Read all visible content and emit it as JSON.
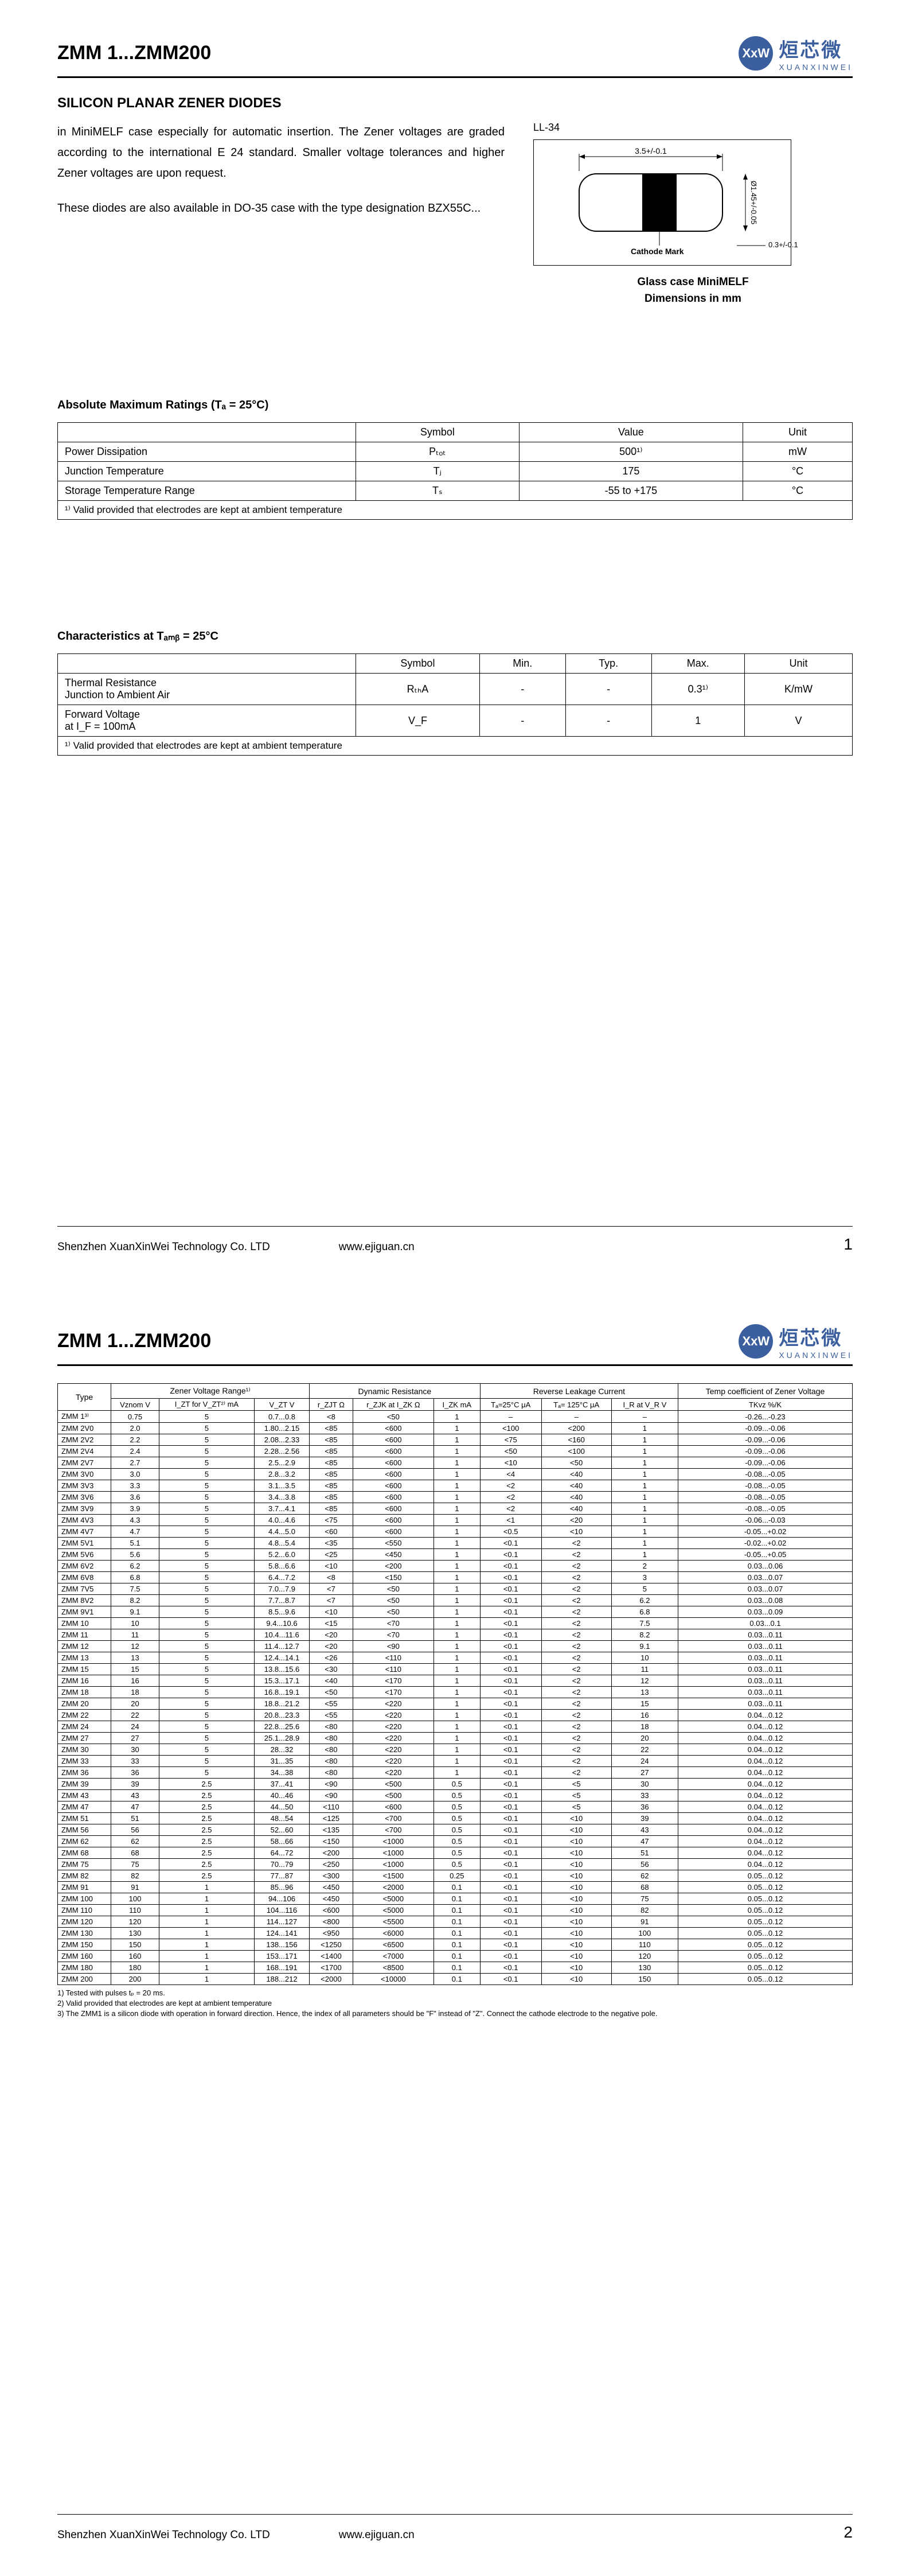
{
  "doc": {
    "title": "ZMM 1...ZMM200",
    "subtitle": "SILICON PLANAR ZENER DIODES",
    "intro_p1": "in MiniMELF case especially for automatic insertion. The Zener voltages are graded according to the international E 24 standard. Smaller voltage tolerances and higher Zener voltages are upon request.",
    "intro_p2": "These diodes are also available in DO-35 case with the type designation BZX55C...",
    "diagram_label": "LL-34",
    "diagram_dim_len": "3.5+/-0.1",
    "diagram_dim_dia": "Ø1.45+/-0.05",
    "diagram_dim_edge": "0.3+/-0.1",
    "diagram_cathode": "Cathode Mark",
    "diagram_caption1": "Glass case MiniMELF",
    "diagram_caption2": "Dimensions in mm",
    "logo_cn": "烜芯微",
    "logo_en": "XUANXINWEI",
    "logo_sym": "XxW"
  },
  "absmax": {
    "heading": "Absolute Maximum Ratings (Tₐ = 25°C)",
    "cols": [
      "Symbol",
      "Value",
      "Unit"
    ],
    "rows": [
      {
        "label": "Power Dissipation",
        "symbol": "Pₜₒₜ",
        "value": "500¹⁾",
        "unit": "mW"
      },
      {
        "label": "Junction Temperature",
        "symbol": "Tⱼ",
        "value": "175",
        "unit": "°C"
      },
      {
        "label": "Storage Temperature Range",
        "symbol": "Tₛ",
        "value": "-55 to +175",
        "unit": "°C"
      }
    ],
    "note": "¹⁾ Valid provided that electrodes are kept at ambient temperature"
  },
  "char": {
    "heading": "Characteristics at Tₐₘᵦ = 25°C",
    "cols": [
      "Symbol",
      "Min.",
      "Typ.",
      "Max.",
      "Unit"
    ],
    "rows": [
      {
        "label": "Thermal Resistance\nJunction to Ambient Air",
        "symbol": "RₜₕA",
        "min": "-",
        "typ": "-",
        "max": "0.3¹⁾",
        "unit": "K/mW"
      },
      {
        "label": "Forward Voltage\nat I_F = 100mA",
        "symbol": "V_F",
        "min": "-",
        "typ": "-",
        "max": "1",
        "unit": "V"
      }
    ],
    "note": "¹⁾ Valid provided that electrodes are kept at ambient temperature"
  },
  "footer": {
    "company": "Shenzhen XuanXinWei Technology Co. LTD",
    "url": "www.ejiguan.cn",
    "p1": "1",
    "p2": "2"
  },
  "big": {
    "type_label": "Type",
    "group_headers": [
      "Zener Voltage Range¹⁾",
      "Dynamic Resistance",
      "Reverse Leakage Current",
      "Temp coefficient of Zener Voltage"
    ],
    "sub_headers": [
      "Vznom V",
      "I_ZT for V_ZT²⁾ mA",
      "V_ZT V",
      "r_ZJT Ω",
      "r_ZJK at I_ZK Ω",
      "I_ZK mA",
      "Tₐ=25°C μA",
      "Tₐ= 125°C μA",
      "I_R at V_R V",
      "TKvz %/K"
    ],
    "rows": [
      [
        "ZMM 1³⁾",
        "0.75",
        "5",
        "0.7...0.8",
        "<8",
        "<50",
        "1",
        "–",
        "–",
        "–",
        "-0.26...-0.23"
      ],
      [
        "ZMM 2V0",
        "2.0",
        "5",
        "1.80...2.15",
        "<85",
        "<600",
        "1",
        "<100",
        "<200",
        "1",
        "-0.09...-0.06"
      ],
      [
        "ZMM 2V2",
        "2.2",
        "5",
        "2.08...2.33",
        "<85",
        "<600",
        "1",
        "<75",
        "<160",
        "1",
        "-0.09...-0.06"
      ],
      [
        "ZMM 2V4",
        "2.4",
        "5",
        "2.28...2.56",
        "<85",
        "<600",
        "1",
        "<50",
        "<100",
        "1",
        "-0.09...-0.06"
      ],
      [
        "ZMM 2V7",
        "2.7",
        "5",
        "2.5...2.9",
        "<85",
        "<600",
        "1",
        "<10",
        "<50",
        "1",
        "-0.09...-0.06"
      ],
      [
        "ZMM 3V0",
        "3.0",
        "5",
        "2.8...3.2",
        "<85",
        "<600",
        "1",
        "<4",
        "<40",
        "1",
        "-0.08...-0.05"
      ],
      [
        "ZMM 3V3",
        "3.3",
        "5",
        "3.1...3.5",
        "<85",
        "<600",
        "1",
        "<2",
        "<40",
        "1",
        "-0.08...-0.05"
      ],
      [
        "ZMM 3V6",
        "3.6",
        "5",
        "3.4...3.8",
        "<85",
        "<600",
        "1",
        "<2",
        "<40",
        "1",
        "-0.08...-0.05"
      ],
      [
        "ZMM 3V9",
        "3.9",
        "5",
        "3.7...4.1",
        "<85",
        "<600",
        "1",
        "<2",
        "<40",
        "1",
        "-0.08...-0.05"
      ],
      [
        "ZMM 4V3",
        "4.3",
        "5",
        "4.0...4.6",
        "<75",
        "<600",
        "1",
        "<1",
        "<20",
        "1",
        "-0.06...-0.03"
      ],
      [
        "ZMM 4V7",
        "4.7",
        "5",
        "4.4...5.0",
        "<60",
        "<600",
        "1",
        "<0.5",
        "<10",
        "1",
        "-0.05...+0.02"
      ],
      [
        "ZMM 5V1",
        "5.1",
        "5",
        "4.8...5.4",
        "<35",
        "<550",
        "1",
        "<0.1",
        "<2",
        "1",
        "-0.02...+0.02"
      ],
      [
        "ZMM 5V6",
        "5.6",
        "5",
        "5.2...6.0",
        "<25",
        "<450",
        "1",
        "<0.1",
        "<2",
        "1",
        "-0.05...+0.05"
      ],
      [
        "ZMM 6V2",
        "6.2",
        "5",
        "5.8...6.6",
        "<10",
        "<200",
        "1",
        "<0.1",
        "<2",
        "2",
        "0.03...0.06"
      ],
      [
        "ZMM 6V8",
        "6.8",
        "5",
        "6.4...7.2",
        "<8",
        "<150",
        "1",
        "<0.1",
        "<2",
        "3",
        "0.03...0.07"
      ],
      [
        "ZMM 7V5",
        "7.5",
        "5",
        "7.0...7.9",
        "<7",
        "<50",
        "1",
        "<0.1",
        "<2",
        "5",
        "0.03...0.07"
      ],
      [
        "ZMM 8V2",
        "8.2",
        "5",
        "7.7...8.7",
        "<7",
        "<50",
        "1",
        "<0.1",
        "<2",
        "6.2",
        "0.03...0.08"
      ],
      [
        "ZMM 9V1",
        "9.1",
        "5",
        "8.5...9.6",
        "<10",
        "<50",
        "1",
        "<0.1",
        "<2",
        "6.8",
        "0.03...0.09"
      ],
      [
        "ZMM 10",
        "10",
        "5",
        "9.4...10.6",
        "<15",
        "<70",
        "1",
        "<0.1",
        "<2",
        "7.5",
        "0.03...0.1"
      ],
      [
        "ZMM 11",
        "11",
        "5",
        "10.4...11.6",
        "<20",
        "<70",
        "1",
        "<0.1",
        "<2",
        "8.2",
        "0.03...0.11"
      ],
      [
        "ZMM 12",
        "12",
        "5",
        "11.4...12.7",
        "<20",
        "<90",
        "1",
        "<0.1",
        "<2",
        "9.1",
        "0.03...0.11"
      ],
      [
        "ZMM 13",
        "13",
        "5",
        "12.4...14.1",
        "<26",
        "<110",
        "1",
        "<0.1",
        "<2",
        "10",
        "0.03...0.11"
      ],
      [
        "ZMM 15",
        "15",
        "5",
        "13.8...15.6",
        "<30",
        "<110",
        "1",
        "<0.1",
        "<2",
        "11",
        "0.03...0.11"
      ],
      [
        "ZMM 16",
        "16",
        "5",
        "15.3...17.1",
        "<40",
        "<170",
        "1",
        "<0.1",
        "<2",
        "12",
        "0.03...0.11"
      ],
      [
        "ZMM 18",
        "18",
        "5",
        "16.8...19.1",
        "<50",
        "<170",
        "1",
        "<0.1",
        "<2",
        "13",
        "0.03...0.11"
      ],
      [
        "ZMM 20",
        "20",
        "5",
        "18.8...21.2",
        "<55",
        "<220",
        "1",
        "<0.1",
        "<2",
        "15",
        "0.03...0.11"
      ],
      [
        "ZMM 22",
        "22",
        "5",
        "20.8...23.3",
        "<55",
        "<220",
        "1",
        "<0.1",
        "<2",
        "16",
        "0.04...0.12"
      ],
      [
        "ZMM 24",
        "24",
        "5",
        "22.8...25.6",
        "<80",
        "<220",
        "1",
        "<0.1",
        "<2",
        "18",
        "0.04...0.12"
      ],
      [
        "ZMM 27",
        "27",
        "5",
        "25.1...28.9",
        "<80",
        "<220",
        "1",
        "<0.1",
        "<2",
        "20",
        "0.04...0.12"
      ],
      [
        "ZMM 30",
        "30",
        "5",
        "28...32",
        "<80",
        "<220",
        "1",
        "<0.1",
        "<2",
        "22",
        "0.04...0.12"
      ],
      [
        "ZMM 33",
        "33",
        "5",
        "31...35",
        "<80",
        "<220",
        "1",
        "<0.1",
        "<2",
        "24",
        "0.04...0.12"
      ],
      [
        "ZMM 36",
        "36",
        "5",
        "34...38",
        "<80",
        "<220",
        "1",
        "<0.1",
        "<2",
        "27",
        "0.04...0.12"
      ],
      [
        "ZMM 39",
        "39",
        "2.5",
        "37...41",
        "<90",
        "<500",
        "0.5",
        "<0.1",
        "<5",
        "30",
        "0.04...0.12"
      ],
      [
        "ZMM 43",
        "43",
        "2.5",
        "40...46",
        "<90",
        "<500",
        "0.5",
        "<0.1",
        "<5",
        "33",
        "0.04...0.12"
      ],
      [
        "ZMM 47",
        "47",
        "2.5",
        "44...50",
        "<110",
        "<600",
        "0.5",
        "<0.1",
        "<5",
        "36",
        "0.04...0.12"
      ],
      [
        "ZMM 51",
        "51",
        "2.5",
        "48...54",
        "<125",
        "<700",
        "0.5",
        "<0.1",
        "<10",
        "39",
        "0.04...0.12"
      ],
      [
        "ZMM 56",
        "56",
        "2.5",
        "52...60",
        "<135",
        "<700",
        "0.5",
        "<0.1",
        "<10",
        "43",
        "0.04...0.12"
      ],
      [
        "ZMM 62",
        "62",
        "2.5",
        "58...66",
        "<150",
        "<1000",
        "0.5",
        "<0.1",
        "<10",
        "47",
        "0.04...0.12"
      ],
      [
        "ZMM 68",
        "68",
        "2.5",
        "64...72",
        "<200",
        "<1000",
        "0.5",
        "<0.1",
        "<10",
        "51",
        "0.04...0.12"
      ],
      [
        "ZMM 75",
        "75",
        "2.5",
        "70...79",
        "<250",
        "<1000",
        "0.5",
        "<0.1",
        "<10",
        "56",
        "0.04...0.12"
      ],
      [
        "ZMM 82",
        "82",
        "2.5",
        "77...87",
        "<300",
        "<1500",
        "0.25",
        "<0.1",
        "<10",
        "62",
        "0.05...0.12"
      ],
      [
        "ZMM 91",
        "91",
        "1",
        "85...96",
        "<450",
        "<2000",
        "0.1",
        "<0.1",
        "<10",
        "68",
        "0.05...0.12"
      ],
      [
        "ZMM 100",
        "100",
        "1",
        "94...106",
        "<450",
        "<5000",
        "0.1",
        "<0.1",
        "<10",
        "75",
        "0.05...0.12"
      ],
      [
        "ZMM 110",
        "110",
        "1",
        "104...116",
        "<600",
        "<5000",
        "0.1",
        "<0.1",
        "<10",
        "82",
        "0.05...0.12"
      ],
      [
        "ZMM 120",
        "120",
        "1",
        "114...127",
        "<800",
        "<5500",
        "0.1",
        "<0.1",
        "<10",
        "91",
        "0.05...0.12"
      ],
      [
        "ZMM 130",
        "130",
        "1",
        "124...141",
        "<950",
        "<6000",
        "0.1",
        "<0.1",
        "<10",
        "100",
        "0.05...0.12"
      ],
      [
        "ZMM 150",
        "150",
        "1",
        "138...156",
        "<1250",
        "<6500",
        "0.1",
        "<0.1",
        "<10",
        "110",
        "0.05...0.12"
      ],
      [
        "ZMM 160",
        "160",
        "1",
        "153...171",
        "<1400",
        "<7000",
        "0.1",
        "<0.1",
        "<10",
        "120",
        "0.05...0.12"
      ],
      [
        "ZMM 180",
        "180",
        "1",
        "168...191",
        "<1700",
        "<8500",
        "0.1",
        "<0.1",
        "<10",
        "130",
        "0.05...0.12"
      ],
      [
        "ZMM 200",
        "200",
        "1",
        "188...212",
        "<2000",
        "<10000",
        "0.1",
        "<0.1",
        "<10",
        "150",
        "0.05...0.12"
      ]
    ],
    "footnotes": [
      "1)   Tested with pulses tₚ = 20 ms.",
      "2)   Valid provided that electrodes are kept at ambient temperature",
      "3)   The ZMM1 is a silicon diode with operation in forward direction. Hence, the index of all parameters should be \"F\" instead of \"Z\". Connect the cathode electrode to the negative pole."
    ]
  }
}
